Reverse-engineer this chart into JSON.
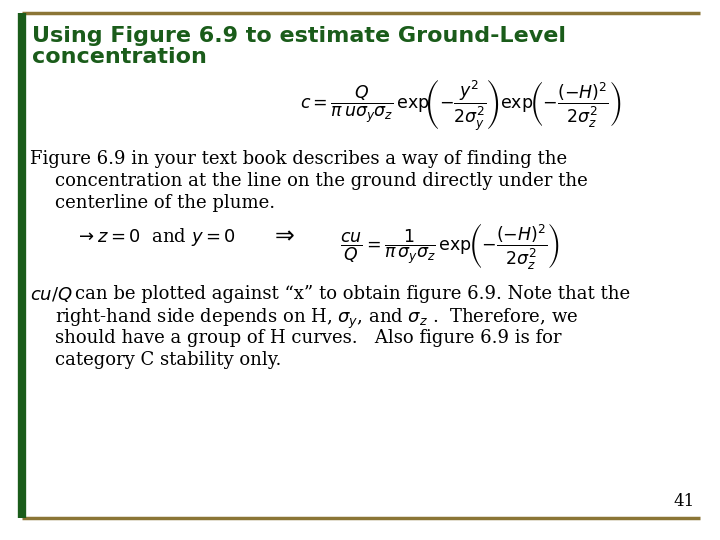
{
  "title_line1": "Using Figure 6.9 to estimate Ground-Level",
  "title_line2": "concentration",
  "title_color": "#1a5c1a",
  "background_color": "#ffffff",
  "border_color": "#8B7536",
  "border_left_color": "#1a5c1a",
  "page_number": "41",
  "figsize": [
    7.2,
    5.4
  ],
  "dpi": 100
}
